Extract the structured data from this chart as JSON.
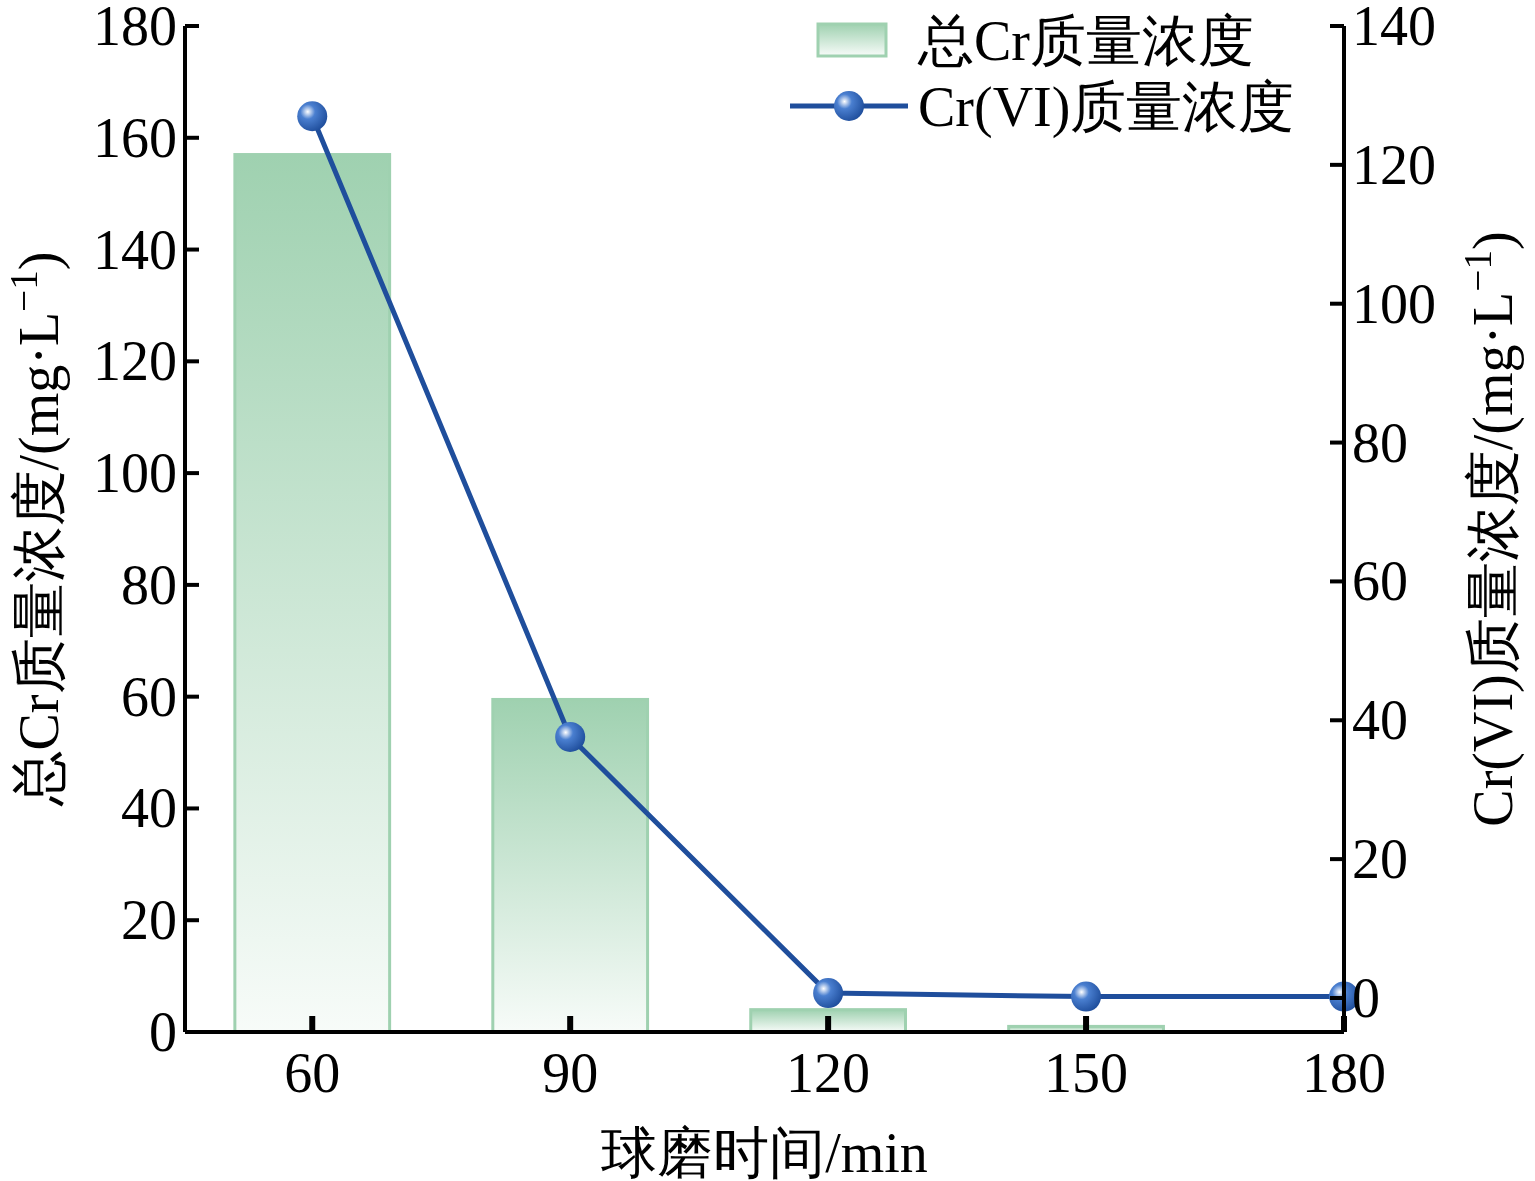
{
  "chart_data": {
    "type": "bar",
    "xlabel": "球磨时间/min",
    "ylabel": "总Cr质量浓度/(mg·L$^{−1}$)",
    "y2label": "Cr(VI)质量浓度/(mg·L$^{−1}$)",
    "x": [
      60,
      90,
      120,
      150,
      180
    ],
    "series": [
      {
        "name": "总Cr质量浓度",
        "color": "#9fd1b0",
        "x": [
          60,
          90,
          120,
          150
        ],
        "values": [
          157,
          59.5,
          4,
          1
        ]
      },
      {
        "name": "Cr(VI)质量浓度",
        "type": "line",
        "axis": "y2",
        "color": "#1f4e9c",
        "values": [
          127,
          37.6,
          0.7,
          0.2,
          0.2
        ]
      }
    ],
    "xlim": [
      45.2,
      180
    ],
    "xticks": [
      60,
      90,
      120,
      150,
      180
    ],
    "ylim": [
      0,
      180
    ],
    "yticks": [
      0,
      20,
      40,
      60,
      80,
      100,
      120,
      140,
      160,
      180
    ],
    "y2lim": [
      -4.9,
      140
    ],
    "y2ticks": [
      0,
      20,
      40,
      60,
      80,
      100,
      120,
      140
    ],
    "marker": "circle",
    "line_style": "solid",
    "legend": "top right",
    "grid": false
  }
}
